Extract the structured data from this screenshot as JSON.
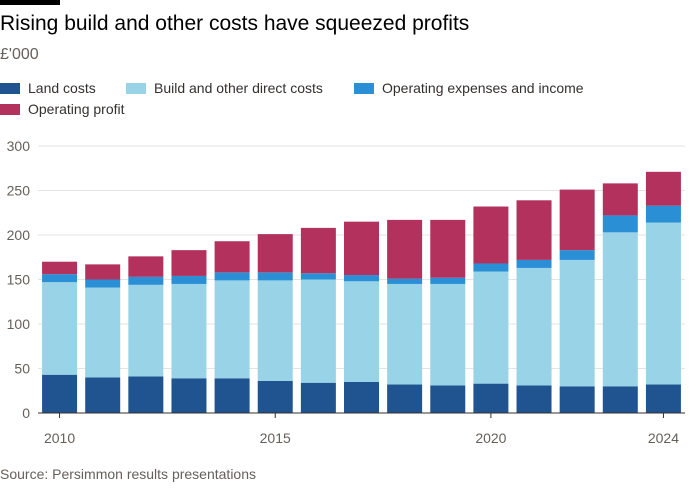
{
  "header": {
    "title": "Rising build and other costs have squeezed profits",
    "subtitle": "£'000"
  },
  "footer": {
    "source": "Source: Persimmon results presentations"
  },
  "colors": {
    "land": "#1f5491",
    "build": "#98d3e7",
    "opex": "#2b8fd6",
    "profit": "#b3325d",
    "grid": "#e6e3e0",
    "axis": "#33302e",
    "text": "#66605c"
  },
  "chart_data": {
    "type": "bar",
    "stacked": true,
    "title": "Rising build and other costs have squeezed profits",
    "ylabel": "£'000",
    "xlabel": "",
    "ylim": [
      0,
      300
    ],
    "yticks": [
      0,
      50,
      100,
      150,
      200,
      250,
      300
    ],
    "grid": true,
    "legend_position": "top-left",
    "categories": [
      "2010",
      "2011",
      "2012",
      "2013",
      "2014",
      "2015",
      "2016",
      "2017",
      "2018",
      "2019",
      "2020",
      "2021",
      "2022",
      "2023",
      "2024"
    ],
    "x_tick_labels": [
      {
        "category": "2010",
        "label": "2010"
      },
      {
        "category": "2015",
        "label": "2015"
      },
      {
        "category": "2020",
        "label": "2020"
      },
      {
        "category": "2024",
        "label": "2024"
      }
    ],
    "series": [
      {
        "name": "Land costs",
        "color": "#1f5491",
        "values": [
          43,
          40,
          41,
          39,
          39,
          36,
          34,
          35,
          32,
          31,
          33,
          31,
          30,
          30,
          32
        ]
      },
      {
        "name": "Build and other direct costs",
        "color": "#98d3e7",
        "values": [
          104,
          101,
          103,
          106,
          110,
          113,
          116,
          113,
          113,
          114,
          126,
          132,
          142,
          173,
          182
        ]
      },
      {
        "name": "Operating expenses and income",
        "color": "#2b8fd6",
        "values": [
          9,
          9,
          9,
          9,
          9,
          9,
          7,
          7,
          6,
          7,
          9,
          9,
          11,
          19,
          19
        ]
      },
      {
        "name": "Operating profit",
        "color": "#b3325d",
        "values": [
          14,
          17,
          23,
          29,
          35,
          43,
          51,
          60,
          66,
          65,
          64,
          67,
          68,
          36,
          38
        ]
      }
    ]
  }
}
